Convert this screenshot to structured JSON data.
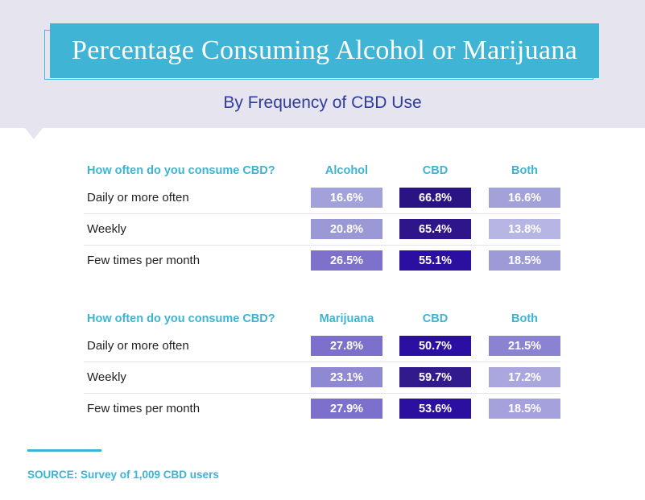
{
  "title": "Percentage Consuming Alcohol or Marijuana",
  "subtitle": "By Frequency of CBD Use",
  "source": "SOURCE: Survey of 1,009 CBD users",
  "colors": {
    "accent": "#40b4d5",
    "header_bg": "#e6e4ef",
    "subtitle": "#2f3d9c"
  },
  "chart_data": [
    {
      "type": "table",
      "columns": [
        "How often do you consume CBD?",
        "Alcohol",
        "CBD",
        "Both"
      ],
      "rows": [
        {
          "label": "Daily or more often",
          "values": [
            16.6,
            66.8,
            16.6
          ],
          "display": [
            "16.6%",
            "66.8%",
            "16.6%"
          ],
          "colors": [
            "#a3a1da",
            "#2a1382",
            "#a3a1da"
          ]
        },
        {
          "label": "Weekly",
          "values": [
            20.8,
            65.4,
            13.8
          ],
          "display": [
            "20.8%",
            "65.4%",
            "13.8%"
          ],
          "colors": [
            "#9b98d6",
            "#2e168a",
            "#b7b5e4"
          ]
        },
        {
          "label": "Few times per month",
          "values": [
            26.5,
            55.1,
            18.5
          ],
          "display": [
            "26.5%",
            "55.1%",
            "18.5%"
          ],
          "colors": [
            "#7d71cc",
            "#2b0fa0",
            "#9d9ad8"
          ]
        }
      ]
    },
    {
      "type": "table",
      "columns": [
        "How often do you consume CBD?",
        "Marijuana",
        "CBD",
        "Both"
      ],
      "rows": [
        {
          "label": "Daily or more often",
          "values": [
            27.8,
            50.7,
            21.5
          ],
          "display": [
            "27.8%",
            "50.7%",
            "21.5%"
          ],
          "colors": [
            "#7b70cc",
            "#2b0fa2",
            "#8a83d2"
          ]
        },
        {
          "label": "Weekly",
          "values": [
            23.1,
            59.7,
            17.2
          ],
          "display": [
            "23.1%",
            "59.7%",
            "17.2%"
          ],
          "colors": [
            "#8f89d4",
            "#301a8c",
            "#aaa7de"
          ]
        },
        {
          "label": "Few times per month",
          "values": [
            27.9,
            53.6,
            18.5
          ],
          "display": [
            "27.9%",
            "53.6%",
            "18.5%"
          ],
          "colors": [
            "#7b70cc",
            "#2b10a0",
            "#a4a1dc"
          ]
        }
      ]
    }
  ]
}
